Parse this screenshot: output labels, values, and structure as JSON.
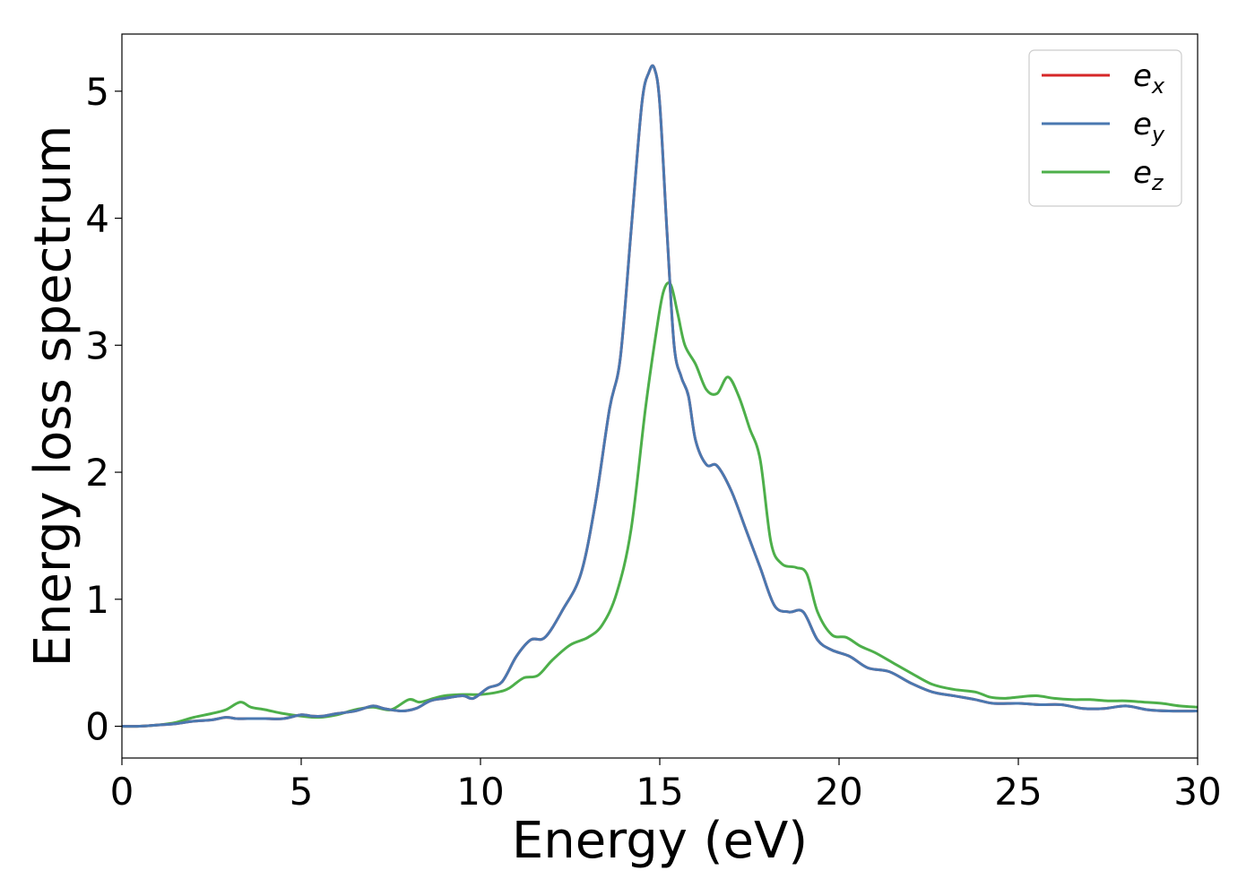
{
  "chart_data": {
    "type": "line",
    "xlabel": "Energy (eV)",
    "ylabel": "Energy loss spectrum",
    "xlim": [
      0,
      30
    ],
    "ylim": [
      -0.25,
      5.45
    ],
    "xticks": [
      0,
      5,
      10,
      15,
      20,
      25,
      30
    ],
    "yticks": [
      0,
      1,
      2,
      3,
      4,
      5
    ],
    "grid": false,
    "legend_position": "top-right",
    "series": [
      {
        "name": "e_x",
        "label_base": "e",
        "label_sub": "x",
        "color": "#d62728",
        "x": [
          0,
          0.5,
          1,
          1.5,
          2,
          2.5,
          2.9,
          3.2,
          3.5,
          4,
          4.5,
          5,
          5.3,
          5.6,
          6,
          6.5,
          7,
          7.3,
          7.8,
          8.2,
          8.6,
          9,
          9.5,
          9.8,
          10.2,
          10.6,
          11,
          11.4,
          11.8,
          12.3,
          12.8,
          13.2,
          13.6,
          13.9,
          14.2,
          14.5,
          14.7,
          14.85,
          15,
          15.2,
          15.4,
          15.6,
          15.8,
          16,
          16.3,
          16.6,
          17,
          17.4,
          17.8,
          18.2,
          18.6,
          19,
          19.4,
          19.8,
          20.3,
          20.8,
          21.4,
          22,
          22.6,
          23.2,
          23.8,
          24.3,
          25,
          25.6,
          26.2,
          26.8,
          27.4,
          28,
          28.6,
          29.2,
          30
        ],
        "values": [
          0,
          0,
          0.01,
          0.02,
          0.04,
          0.05,
          0.07,
          0.06,
          0.06,
          0.06,
          0.06,
          0.09,
          0.08,
          0.08,
          0.1,
          0.12,
          0.16,
          0.14,
          0.12,
          0.14,
          0.2,
          0.22,
          0.24,
          0.22,
          0.3,
          0.35,
          0.55,
          0.68,
          0.7,
          0.92,
          1.2,
          1.75,
          2.5,
          2.9,
          3.9,
          4.9,
          5.15,
          5.18,
          4.9,
          3.9,
          3.0,
          2.75,
          2.6,
          2.25,
          2.06,
          2.05,
          1.85,
          1.55,
          1.25,
          0.95,
          0.9,
          0.9,
          0.68,
          0.6,
          0.55,
          0.46,
          0.43,
          0.34,
          0.27,
          0.24,
          0.21,
          0.18,
          0.18,
          0.17,
          0.17,
          0.14,
          0.14,
          0.16,
          0.13,
          0.12,
          0.12
        ]
      },
      {
        "name": "e_y",
        "label_base": "e",
        "label_sub": "y",
        "color": "#4a78b0",
        "x": [
          0,
          0.5,
          1,
          1.5,
          2,
          2.5,
          2.9,
          3.2,
          3.5,
          4,
          4.5,
          5,
          5.3,
          5.6,
          6,
          6.5,
          7,
          7.3,
          7.8,
          8.2,
          8.6,
          9,
          9.5,
          9.8,
          10.2,
          10.6,
          11,
          11.4,
          11.8,
          12.3,
          12.8,
          13.2,
          13.6,
          13.9,
          14.2,
          14.5,
          14.7,
          14.85,
          15,
          15.2,
          15.4,
          15.6,
          15.8,
          16,
          16.3,
          16.6,
          17,
          17.4,
          17.8,
          18.2,
          18.6,
          19,
          19.4,
          19.8,
          20.3,
          20.8,
          21.4,
          22,
          22.6,
          23.2,
          23.8,
          24.3,
          25,
          25.6,
          26.2,
          26.8,
          27.4,
          28,
          28.6,
          29.2,
          30
        ],
        "values": [
          0,
          0,
          0.01,
          0.02,
          0.04,
          0.05,
          0.07,
          0.06,
          0.06,
          0.06,
          0.06,
          0.09,
          0.08,
          0.08,
          0.1,
          0.12,
          0.16,
          0.14,
          0.12,
          0.14,
          0.2,
          0.22,
          0.24,
          0.22,
          0.3,
          0.35,
          0.55,
          0.68,
          0.7,
          0.92,
          1.2,
          1.75,
          2.5,
          2.9,
          3.9,
          4.9,
          5.15,
          5.18,
          4.9,
          3.9,
          3.0,
          2.75,
          2.6,
          2.25,
          2.06,
          2.05,
          1.85,
          1.55,
          1.25,
          0.95,
          0.9,
          0.9,
          0.68,
          0.6,
          0.55,
          0.46,
          0.43,
          0.34,
          0.27,
          0.24,
          0.21,
          0.18,
          0.18,
          0.17,
          0.17,
          0.14,
          0.14,
          0.16,
          0.13,
          0.12,
          0.12
        ]
      },
      {
        "name": "e_z",
        "label_base": "e",
        "label_sub": "z",
        "color": "#4daf4a",
        "x": [
          0,
          0.5,
          1,
          1.5,
          2,
          2.5,
          2.9,
          3.3,
          3.6,
          4,
          4.5,
          5,
          5.5,
          6,
          6.5,
          7,
          7.5,
          8,
          8.3,
          8.7,
          9,
          9.5,
          10,
          10.5,
          10.8,
          11.2,
          11.6,
          12,
          12.5,
          13,
          13.4,
          13.8,
          14.2,
          14.6,
          14.9,
          15.1,
          15.3,
          15.5,
          15.7,
          16,
          16.3,
          16.6,
          16.9,
          17.2,
          17.5,
          17.8,
          18.1,
          18.4,
          18.8,
          19.1,
          19.4,
          19.8,
          20.2,
          20.6,
          21,
          21.5,
          22,
          22.6,
          23.2,
          23.8,
          24.2,
          24.6,
          25,
          25.5,
          26,
          26.5,
          27,
          27.5,
          28,
          28.5,
          29,
          29.5,
          30
        ],
        "values": [
          0,
          0,
          0.01,
          0.03,
          0.07,
          0.1,
          0.13,
          0.19,
          0.15,
          0.13,
          0.1,
          0.08,
          0.07,
          0.09,
          0.13,
          0.15,
          0.13,
          0.21,
          0.19,
          0.22,
          0.24,
          0.25,
          0.25,
          0.27,
          0.3,
          0.38,
          0.4,
          0.52,
          0.64,
          0.7,
          0.8,
          1.05,
          1.55,
          2.5,
          3.1,
          3.42,
          3.48,
          3.25,
          3.0,
          2.85,
          2.65,
          2.62,
          2.75,
          2.6,
          2.35,
          2.1,
          1.45,
          1.28,
          1.25,
          1.2,
          0.9,
          0.72,
          0.7,
          0.63,
          0.58,
          0.5,
          0.42,
          0.33,
          0.29,
          0.27,
          0.23,
          0.22,
          0.23,
          0.24,
          0.22,
          0.21,
          0.21,
          0.2,
          0.2,
          0.19,
          0.18,
          0.16,
          0.15
        ]
      }
    ]
  }
}
